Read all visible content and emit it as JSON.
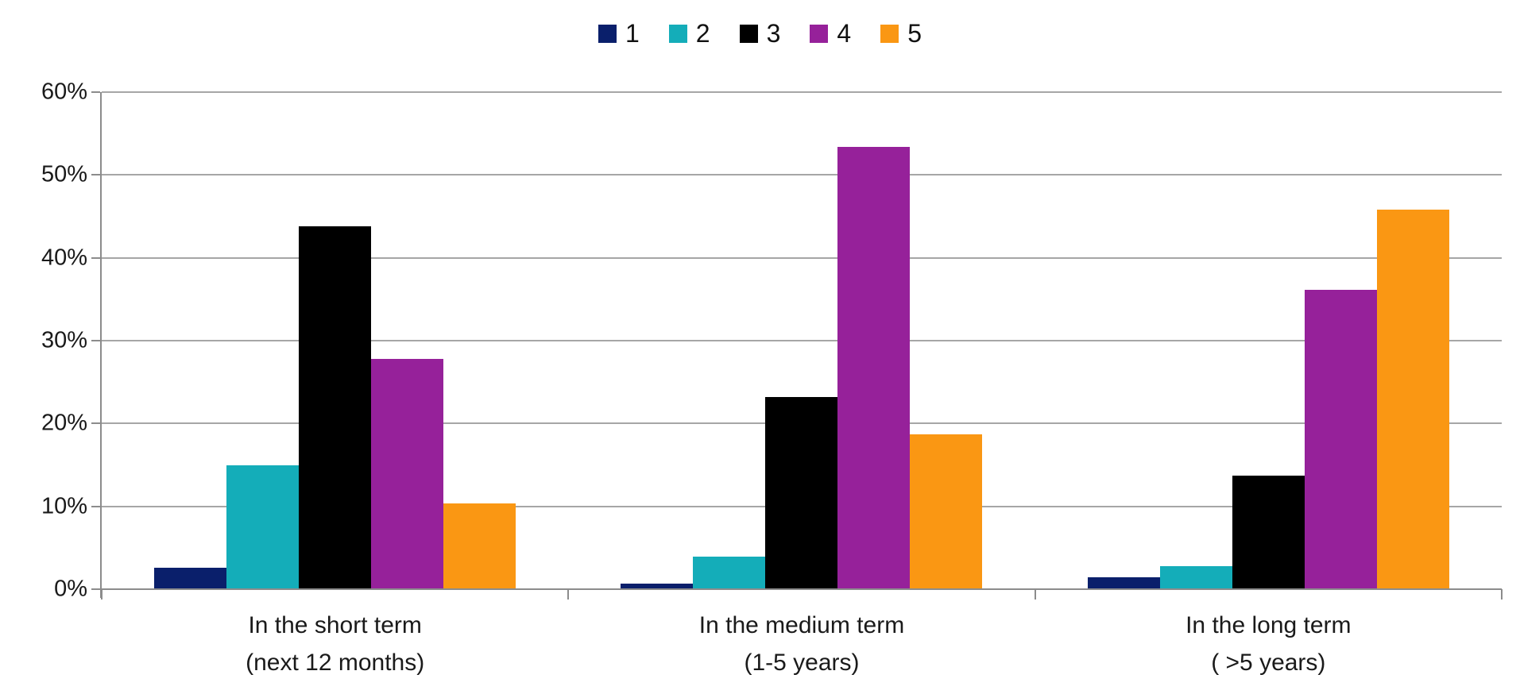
{
  "chart_data": {
    "type": "bar",
    "title": "",
    "xlabel": "",
    "ylabel": "",
    "categories": [
      [
        "In the short term",
        "(next 12 months)"
      ],
      [
        "In the medium term",
        "(1-5 years)"
      ],
      [
        "In the long term",
        "( >5 years)"
      ]
    ],
    "series": [
      {
        "name": "1",
        "color": "#0a1f6b",
        "values": [
          2.6,
          0.7,
          1.4
        ]
      },
      {
        "name": "2",
        "color": "#14adb9",
        "values": [
          15.0,
          3.9,
          2.8
        ]
      },
      {
        "name": "3",
        "color": "#000000",
        "values": [
          43.8,
          23.2,
          13.7
        ]
      },
      {
        "name": "4",
        "color": "#96219a",
        "values": [
          27.8,
          53.4,
          36.1
        ]
      },
      {
        "name": "5",
        "color": "#fa9713",
        "values": [
          10.4,
          18.7,
          45.8
        ]
      }
    ],
    "ylim": [
      0,
      60
    ],
    "ytick_step": 10,
    "ytick_labels_top_to_bottom": [
      "60%",
      "50%",
      "40%",
      "30%",
      "20%",
      "10%",
      "0%"
    ],
    "grid": true,
    "legend_position": "top-center",
    "colors": {
      "gridline": "#a6a6a6",
      "axis": "#8c8c8c",
      "text": "#1a1a1a",
      "background": "#ffffff"
    }
  }
}
